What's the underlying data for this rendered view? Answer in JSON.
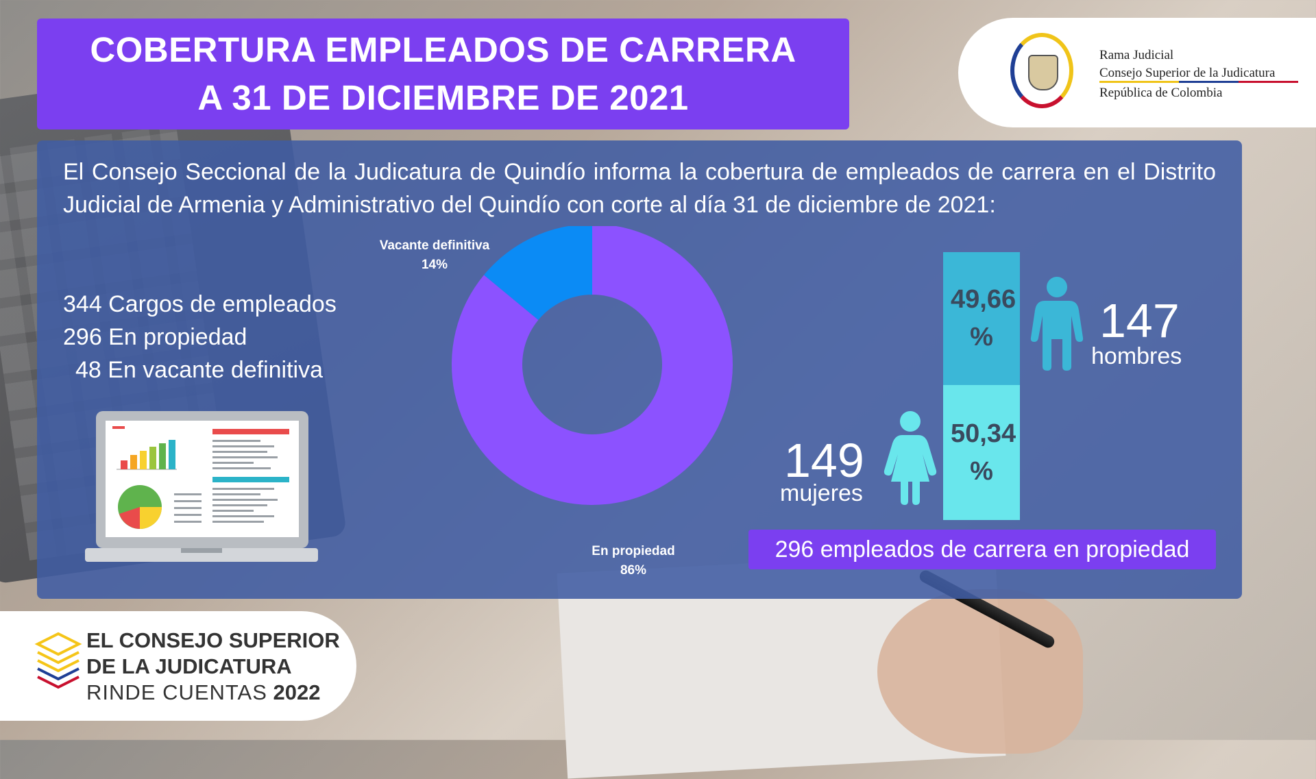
{
  "header": {
    "title_line1": "COBERTURA EMPLEADOS DE CARRERA",
    "title_line2": "A 31 DE DICIEMBRE DE 2021"
  },
  "logo": {
    "line1": "Rama Judicial",
    "line2": "Consejo Superior de la Judicatura",
    "line3": "República de Colombia"
  },
  "intro_text": "El Consejo Seccional de la Judicatura de Quindío informa la cobertura de empleados de carrera en el Distrito Judicial de Armenia y Administrativo del Quindío con corte al día 31 de diciembre de 2021:",
  "stats": {
    "total": "344 Cargos de empleados",
    "propiedad": "296 En propiedad",
    "vacante": "48 En vacante definitiva"
  },
  "chart_data": [
    {
      "type": "pie",
      "style": "donut",
      "labels": [
        "En propiedad",
        "Vacante definitiva"
      ],
      "values": [
        86,
        14
      ],
      "value_labels": [
        "86%",
        "14%"
      ],
      "colors": [
        "#8c52ff",
        "#0b8bf5"
      ]
    },
    {
      "type": "bar",
      "style": "stacked",
      "categories": [
        "hombres",
        "mujeres"
      ],
      "values": [
        49.66,
        50.34
      ],
      "value_labels": [
        "49,66 %",
        "50,34 %"
      ],
      "counts": [
        "147",
        "149"
      ],
      "colors": [
        "#3bb7d7",
        "#69e6ec"
      ]
    }
  ],
  "gender": {
    "men_count": "147",
    "men_label": "hombres",
    "men_pct": "49,66 %",
    "women_count": "149",
    "women_label": "mujeres",
    "women_pct": "50,34 %"
  },
  "banner": "296 empleados de carrera en propiedad",
  "brand": {
    "line1": "EL CONSEJO SUPERIOR",
    "line2": "DE LA JUDICATURA",
    "line3a": "RINDE CUENTAS",
    "line3b": "2022"
  },
  "colors": {
    "purple": "#7b3ff0",
    "panel_blue": "#405ca3",
    "donut_main": "#8c52ff",
    "donut_secondary": "#0b8bf5",
    "bar_men": "#3bb7d7",
    "bar_women": "#69e6ec"
  },
  "icons": [
    "colombia-crest-icon",
    "laptop-dashboard-icon",
    "man-icon",
    "woman-icon",
    "stacked-pages-icon"
  ]
}
